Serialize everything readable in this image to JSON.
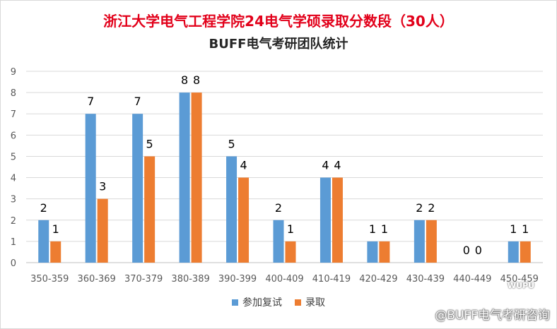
{
  "title": "浙江大学电气工程学院24电气学硕录取分数段（30人）",
  "subtitle": "BUFF电气考研团队统计",
  "watermark": "@BUFF电气考研咨询",
  "watermark_logo": "WUPU",
  "colors": {
    "series1": "#5b9bd5",
    "series2": "#ed7d31",
    "grid": "#d9d9d9",
    "axis": "#595959"
  },
  "chart_data": {
    "type": "bar",
    "categories": [
      "350-359",
      "360-369",
      "370-379",
      "380-389",
      "390-399",
      "400-409",
      "410-419",
      "420-429",
      "430-439",
      "440-449",
      "450-459"
    ],
    "series": [
      {
        "name": "参加复试",
        "values": [
          2,
          7,
          7,
          8,
          5,
          2,
          4,
          1,
          2,
          0,
          1
        ]
      },
      {
        "name": "录取",
        "values": [
          1,
          3,
          5,
          8,
          4,
          1,
          4,
          1,
          2,
          0,
          1
        ]
      }
    ],
    "yticks": [
      "0",
      "1",
      "2",
      "3",
      "4",
      "5",
      "6",
      "7",
      "8",
      "9"
    ],
    "ylim": [
      0,
      9
    ],
    "grid": true,
    "legend_position": "bottom"
  }
}
